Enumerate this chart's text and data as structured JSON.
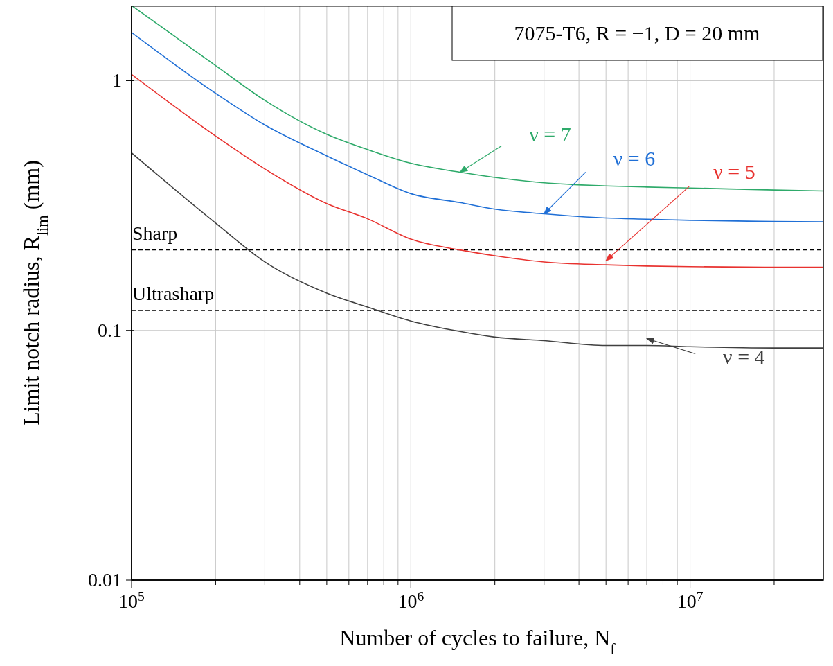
{
  "chart_data": {
    "type": "line",
    "xlabel": "Number of cycles to failure, N$_{f}$",
    "ylabel": "Limit notch radius, R$_{lim}$ (mm)",
    "annotations": [
      "7075-T6, R = −1, D = 20 mm"
    ],
    "x": [
      100000,
      200000,
      300000,
      500000,
      700000,
      1000000,
      1500000,
      2000000,
      3000000,
      5000000,
      7000000,
      10000000,
      20000000,
      30000000
    ],
    "series": [
      {
        "name": "ν = 7",
        "color": "#2eaa6a",
        "values": [
          2.0,
          1.15,
          0.834,
          0.61,
          0.53,
          0.467,
          0.43,
          0.41,
          0.39,
          0.379,
          0.375,
          0.372,
          0.365,
          0.362
        ]
      },
      {
        "name": "ν = 6",
        "color": "#1f6fd6",
        "values": [
          1.56,
          0.89,
          0.665,
          0.5,
          0.42,
          0.353,
          0.325,
          0.306,
          0.293,
          0.282,
          0.279,
          0.276,
          0.273,
          0.272
        ]
      },
      {
        "name": "ν = 5",
        "color": "#e8322f",
        "values": [
          1.06,
          0.6,
          0.443,
          0.322,
          0.28,
          0.232,
          0.21,
          0.199,
          0.188,
          0.183,
          0.181,
          0.18,
          0.179,
          0.179
        ]
      },
      {
        "name": "ν = 4",
        "color": "#404040",
        "values": [
          0.514,
          0.269,
          0.188,
          0.141,
          0.124,
          0.109,
          0.099,
          0.094,
          0.091,
          0.087,
          0.087,
          0.086,
          0.085,
          0.085
        ]
      }
    ],
    "xlim": [
      100000,
      30000000
    ],
    "ylim": [
      0.01,
      2
    ],
    "xticks": [
      {
        "value": 100000,
        "label": "10$^{5}$"
      },
      {
        "value": 200000,
        "label": null
      },
      {
        "value": 300000,
        "label": null
      },
      {
        "value": 400000,
        "label": null
      },
      {
        "value": 500000,
        "label": null
      },
      {
        "value": 600000,
        "label": null
      },
      {
        "value": 700000,
        "label": null
      },
      {
        "value": 800000,
        "label": null
      },
      {
        "value": 900000,
        "label": null
      },
      {
        "value": 1000000,
        "label": "10$^{6}$"
      },
      {
        "value": 2000000,
        "label": null
      },
      {
        "value": 3000000,
        "label": null
      },
      {
        "value": 4000000,
        "label": null
      },
      {
        "value": 5000000,
        "label": null
      },
      {
        "value": 6000000,
        "label": null
      },
      {
        "value": 7000000,
        "label": null
      },
      {
        "value": 8000000,
        "label": null
      },
      {
        "value": 9000000,
        "label": null
      },
      {
        "value": 10000000,
        "label": "10$^{7}$"
      },
      {
        "value": 20000000,
        "label": null
      }
    ],
    "yticks": [
      0.01,
      0.1,
      1
    ],
    "log": "xy",
    "grid": true,
    "ref_lines": [
      {
        "axis": "y",
        "value": 0.21,
        "label": "Sharp",
        "color": "#000000",
        "line_style": "dashed"
      },
      {
        "axis": "y",
        "value": 0.12,
        "label": "Ultrasharp",
        "color": "#000000",
        "line_style": "dashed"
      }
    ]
  }
}
